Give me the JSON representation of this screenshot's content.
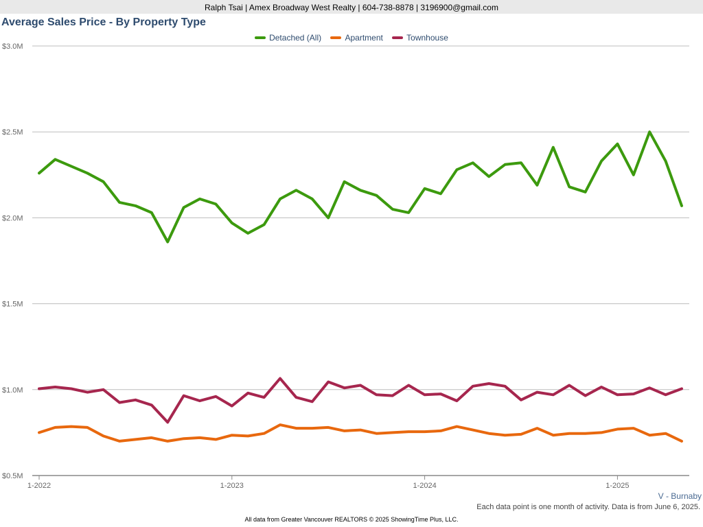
{
  "header": {
    "contact": "Ralph Tsai | Amex Broadway West Realty | 604-738-8878 | 3196900@gmail.com"
  },
  "region": "V - Burnaby",
  "note": "Each data point is one month of activity. Data is from June 6, 2025.",
  "footer": "All data from Greater Vancouver REALTORS © 2025 ShowingTime Plus, LLC.",
  "chart_data": {
    "type": "line",
    "title": "Average Sales Price - By Property Type",
    "xlabel": "",
    "ylabel": "",
    "grid": true,
    "legend": "top-center",
    "ylim": [
      500000,
      3000000
    ],
    "yticks": [
      {
        "value": 500000,
        "label": "$0.5M"
      },
      {
        "value": 1000000,
        "label": "$1.0M"
      },
      {
        "value": 1500000,
        "label": "$1.5M"
      },
      {
        "value": 2000000,
        "label": "$2.0M"
      },
      {
        "value": 2500000,
        "label": "$2.5M"
      },
      {
        "value": 3000000,
        "label": "$3.0M"
      }
    ],
    "x": [
      "2022-01",
      "2022-02",
      "2022-03",
      "2022-04",
      "2022-05",
      "2022-06",
      "2022-07",
      "2022-08",
      "2022-09",
      "2022-10",
      "2022-11",
      "2022-12",
      "2023-01",
      "2023-02",
      "2023-03",
      "2023-04",
      "2023-05",
      "2023-06",
      "2023-07",
      "2023-08",
      "2023-09",
      "2023-10",
      "2023-11",
      "2023-12",
      "2024-01",
      "2024-02",
      "2024-03",
      "2024-04",
      "2024-05",
      "2024-06",
      "2024-07",
      "2024-08",
      "2024-09",
      "2024-10",
      "2024-11",
      "2024-12",
      "2025-01",
      "2025-02",
      "2025-03",
      "2025-04",
      "2025-05"
    ],
    "xticks": [
      {
        "index": 0,
        "label": "1-2022"
      },
      {
        "index": 12,
        "label": "1-2023"
      },
      {
        "index": 24,
        "label": "1-2024"
      },
      {
        "index": 36,
        "label": "1-2025"
      }
    ],
    "series": [
      {
        "name": "Detached (All)",
        "color": "#3c9a0e",
        "values": [
          2260000,
          2340000,
          2300000,
          2260000,
          2210000,
          2090000,
          2070000,
          2030000,
          1860000,
          2060000,
          2110000,
          2080000,
          1970000,
          1910000,
          1960000,
          2110000,
          2160000,
          2110000,
          2000000,
          2210000,
          2160000,
          2130000,
          2050000,
          2030000,
          2170000,
          2140000,
          2280000,
          2320000,
          2240000,
          2310000,
          2320000,
          2190000,
          2410000,
          2180000,
          2150000,
          2330000,
          2430000,
          2250000,
          2500000,
          2330000,
          2070000
        ]
      },
      {
        "name": "Apartment",
        "color": "#e8680e",
        "values": [
          750000,
          780000,
          785000,
          780000,
          730000,
          700000,
          710000,
          720000,
          700000,
          715000,
          720000,
          710000,
          735000,
          730000,
          745000,
          795000,
          775000,
          775000,
          780000,
          760000,
          765000,
          745000,
          750000,
          755000,
          755000,
          760000,
          785000,
          765000,
          745000,
          735000,
          740000,
          775000,
          735000,
          745000,
          745000,
          750000,
          770000,
          775000,
          735000,
          745000,
          700000
        ]
      },
      {
        "name": "Townhouse",
        "color": "#a6264e",
        "values": [
          1005000,
          1015000,
          1005000,
          985000,
          1000000,
          925000,
          940000,
          910000,
          810000,
          965000,
          935000,
          960000,
          905000,
          980000,
          955000,
          1065000,
          955000,
          930000,
          1045000,
          1010000,
          1025000,
          970000,
          965000,
          1025000,
          970000,
          975000,
          935000,
          1020000,
          1035000,
          1020000,
          940000,
          985000,
          970000,
          1025000,
          965000,
          1015000,
          970000,
          975000,
          1010000,
          970000,
          1005000
        ]
      }
    ]
  }
}
